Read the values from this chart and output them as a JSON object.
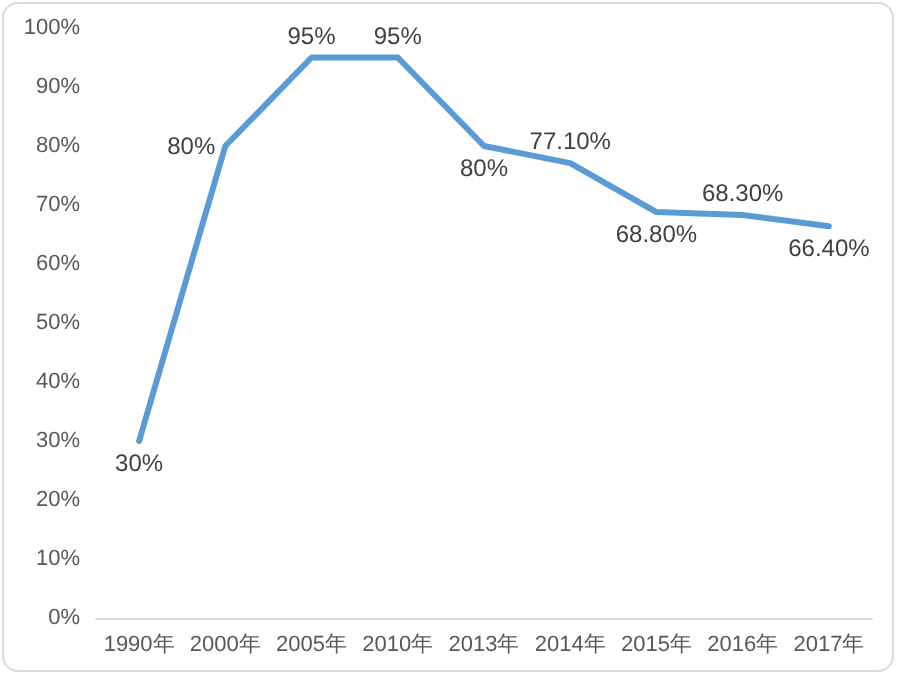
{
  "chart_data": {
    "type": "line",
    "categories": [
      "1990年",
      "2000年",
      "2005年",
      "2010年",
      "2013年",
      "2014年",
      "2015年",
      "2016年",
      "2017年"
    ],
    "series": [
      {
        "color": "#5b9bd5",
        "values": [
          30,
          80,
          95,
          95,
          80,
          77.1,
          68.8,
          68.3,
          66.4
        ],
        "value_labels": [
          "30%",
          "80%",
          "95%",
          "95%",
          "80%",
          "77.10%",
          "68.80%",
          "68.30%",
          "66.40%"
        ]
      }
    ],
    "ylim": [
      0,
      100
    ],
    "yticks": [
      {
        "value": 0,
        "label": "0%"
      },
      {
        "value": 10,
        "label": "10%"
      },
      {
        "value": 20,
        "label": "20%"
      },
      {
        "value": 30,
        "label": "30%"
      },
      {
        "value": 40,
        "label": "40%"
      },
      {
        "value": 50,
        "label": "50%"
      },
      {
        "value": 60,
        "label": "60%"
      },
      {
        "value": 70,
        "label": "70%"
      },
      {
        "value": 80,
        "label": "80%"
      },
      {
        "value": 90,
        "label": "90%"
      },
      {
        "value": 100,
        "label": "100%"
      }
    ],
    "grid": false,
    "marker": "none",
    "line_style": "solid"
  }
}
